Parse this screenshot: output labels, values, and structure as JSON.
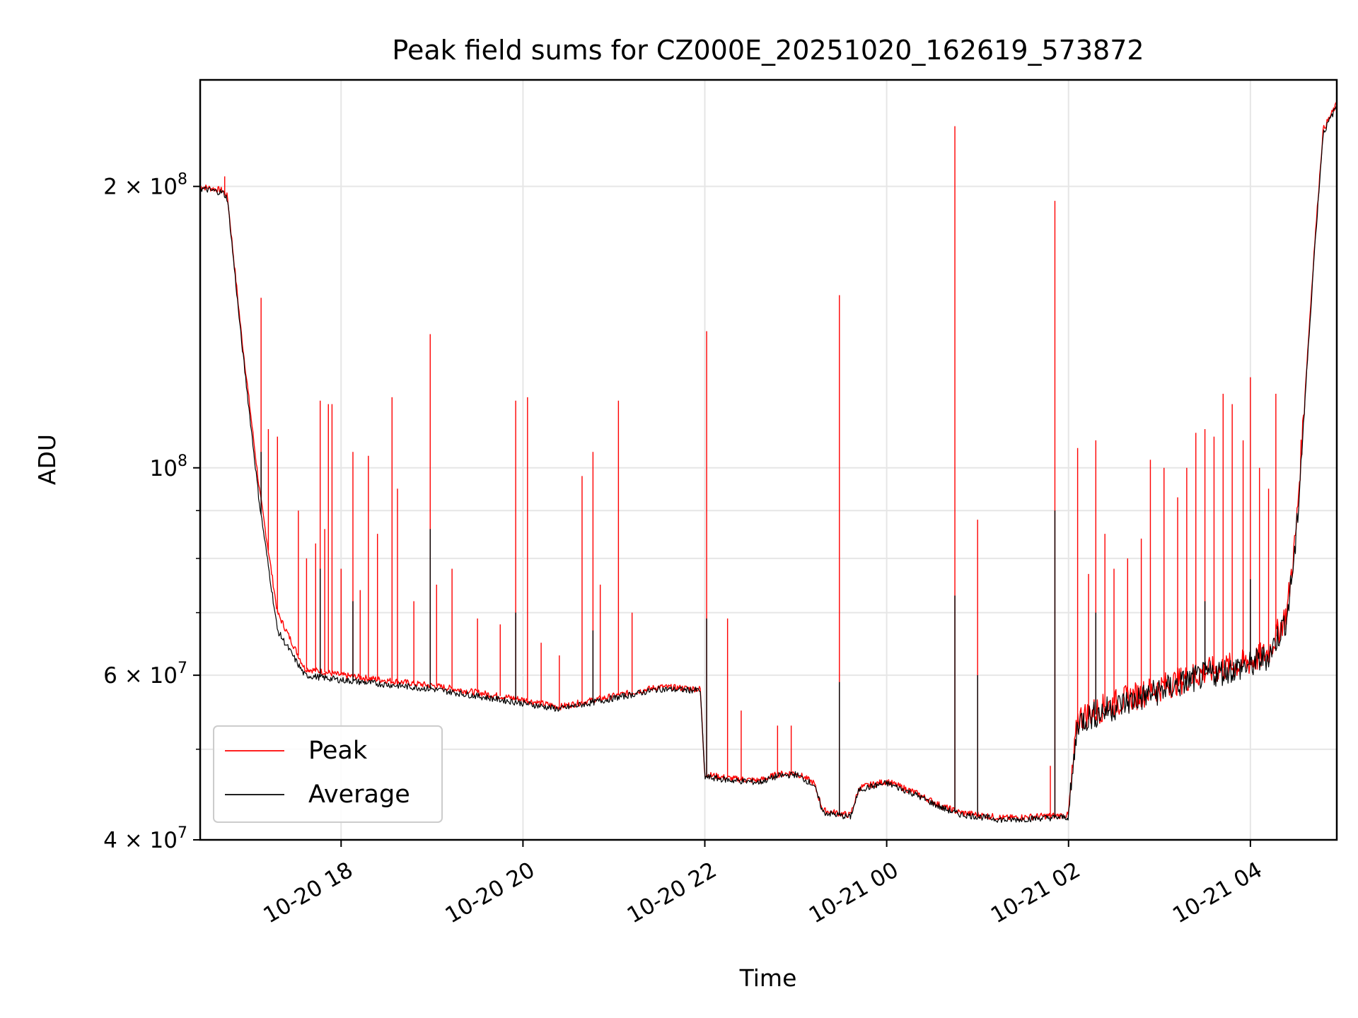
{
  "chart_data": {
    "type": "line",
    "title": "Peak field sums for CZ000E_20251020_162619_573872",
    "xlabel": "Time",
    "ylabel": "ADU",
    "yscale": "log",
    "ylim": [
      40000000,
      260000000
    ],
    "xlim_hours": [
      16.45,
      28.95
    ],
    "x_unit": "hours since 2025-10-20 00:00",
    "grid": true,
    "legend_position": "lower-left",
    "x_ticks": [
      {
        "label": "10-20 18",
        "value": 18
      },
      {
        "label": "10-20 20",
        "value": 20
      },
      {
        "label": "10-20 22",
        "value": 22
      },
      {
        "label": "10-21 00",
        "value": 24
      },
      {
        "label": "10-21 02",
        "value": 26
      },
      {
        "label": "10-21 04",
        "value": 28
      }
    ],
    "y_ticks": [
      {
        "mantissa": "4",
        "exp": "7",
        "value": 40000000
      },
      {
        "mantissa": "6",
        "exp": "7",
        "value": 60000000
      },
      {
        "mantissa": "",
        "exp": "8",
        "value": 100000000
      },
      {
        "mantissa": "2",
        "exp": "8",
        "value": 200000000
      }
    ],
    "y_minor_gridlines": [
      50000000,
      70000000,
      80000000,
      90000000
    ],
    "series": [
      {
        "name": "Peak",
        "color": "#ff0000",
        "baseline": [
          [
            16.45,
            200000000
          ],
          [
            16.7,
            198000000
          ],
          [
            16.75,
            195000000
          ],
          [
            16.9,
            140000000
          ],
          [
            17.1,
            95000000
          ],
          [
            17.3,
            70000000
          ],
          [
            17.6,
            61000000
          ],
          [
            18.0,
            60000000
          ],
          [
            19.0,
            58500000
          ],
          [
            20.0,
            56500000
          ],
          [
            20.4,
            55500000
          ],
          [
            21.0,
            57000000
          ],
          [
            21.5,
            58300000
          ],
          [
            21.95,
            58000000
          ],
          [
            22.0,
            47000000
          ],
          [
            22.3,
            46500000
          ],
          [
            22.6,
            46300000
          ],
          [
            22.8,
            47000000
          ],
          [
            23.0,
            47200000
          ],
          [
            23.2,
            46000000
          ],
          [
            23.3,
            43000000
          ],
          [
            23.6,
            42500000
          ],
          [
            23.7,
            45500000
          ],
          [
            24.0,
            46200000
          ],
          [
            24.3,
            45000000
          ],
          [
            24.6,
            43500000
          ],
          [
            24.8,
            42800000
          ],
          [
            25.3,
            42200000
          ],
          [
            25.7,
            42400000
          ],
          [
            26.0,
            42500000
          ],
          [
            26.1,
            54000000
          ],
          [
            26.5,
            56000000
          ],
          [
            27.0,
            58200000
          ],
          [
            27.5,
            60500000
          ],
          [
            28.0,
            62000000
          ],
          [
            28.2,
            63500000
          ],
          [
            28.4,
            70000000
          ],
          [
            28.5,
            85000000
          ],
          [
            28.6,
            120000000
          ],
          [
            28.7,
            170000000
          ],
          [
            28.8,
            230000000
          ],
          [
            28.95,
            245000000
          ]
        ],
        "spikes": [
          [
            16.72,
            205000000
          ],
          [
            17.12,
            152000000
          ],
          [
            17.2,
            110000000
          ],
          [
            17.3,
            108000000
          ],
          [
            17.53,
            90000000
          ],
          [
            17.62,
            80000000
          ],
          [
            17.72,
            83000000
          ],
          [
            17.77,
            118000000
          ],
          [
            17.82,
            86000000
          ],
          [
            17.86,
            117000000
          ],
          [
            17.9,
            117000000
          ],
          [
            18.0,
            78000000
          ],
          [
            18.13,
            104000000
          ],
          [
            18.21,
            74000000
          ],
          [
            18.3,
            103000000
          ],
          [
            18.4,
            85000000
          ],
          [
            18.56,
            119000000
          ],
          [
            18.62,
            95000000
          ],
          [
            18.8,
            72000000
          ],
          [
            18.98,
            139000000
          ],
          [
            19.05,
            75000000
          ],
          [
            19.22,
            78000000
          ],
          [
            19.5,
            69000000
          ],
          [
            19.75,
            68000000
          ],
          [
            19.92,
            118000000
          ],
          [
            20.05,
            119000000
          ],
          [
            20.2,
            65000000
          ],
          [
            20.4,
            63000000
          ],
          [
            20.65,
            98000000
          ],
          [
            20.77,
            104000000
          ],
          [
            20.85,
            75000000
          ],
          [
            21.05,
            118000000
          ],
          [
            21.2,
            70000000
          ],
          [
            22.02,
            140000000
          ],
          [
            22.25,
            69000000
          ],
          [
            22.4,
            55000000
          ],
          [
            22.8,
            53000000
          ],
          [
            22.95,
            53000000
          ],
          [
            23.48,
            153000000
          ],
          [
            24.75,
            232000000
          ],
          [
            25.0,
            88000000
          ],
          [
            25.8,
            48000000
          ],
          [
            25.85,
            193000000
          ],
          [
            26.1,
            105000000
          ],
          [
            26.22,
            77000000
          ],
          [
            26.3,
            107000000
          ],
          [
            26.4,
            85000000
          ],
          [
            26.5,
            78000000
          ],
          [
            26.65,
            80000000
          ],
          [
            26.8,
            84000000
          ],
          [
            26.9,
            102000000
          ],
          [
            27.05,
            100000000
          ],
          [
            27.2,
            93000000
          ],
          [
            27.3,
            100000000
          ],
          [
            27.4,
            109000000
          ],
          [
            27.5,
            110000000
          ],
          [
            27.6,
            108000000
          ],
          [
            27.7,
            120000000
          ],
          [
            27.8,
            117000000
          ],
          [
            27.92,
            107000000
          ],
          [
            28.0,
            125000000
          ],
          [
            28.1,
            100000000
          ],
          [
            28.2,
            95000000
          ],
          [
            28.28,
            120000000
          ]
        ]
      },
      {
        "name": "Average",
        "color": "#000000",
        "baseline": [
          [
            16.45,
            199000000
          ],
          [
            16.7,
            197000000
          ],
          [
            16.75,
            194000000
          ],
          [
            16.9,
            138000000
          ],
          [
            17.1,
            92000000
          ],
          [
            17.3,
            67000000
          ],
          [
            17.6,
            60000000
          ],
          [
            18.0,
            59300000
          ],
          [
            19.0,
            58000000
          ],
          [
            20.0,
            56000000
          ],
          [
            20.4,
            55200000
          ],
          [
            21.0,
            56700000
          ],
          [
            21.5,
            58000000
          ],
          [
            21.95,
            57800000
          ],
          [
            22.0,
            46700000
          ],
          [
            22.3,
            46300000
          ],
          [
            22.6,
            46100000
          ],
          [
            22.8,
            46800000
          ],
          [
            23.0,
            47000000
          ],
          [
            23.2,
            45800000
          ],
          [
            23.3,
            42800000
          ],
          [
            23.6,
            42300000
          ],
          [
            23.7,
            45300000
          ],
          [
            24.0,
            46000000
          ],
          [
            24.3,
            44800000
          ],
          [
            24.6,
            43300000
          ],
          [
            24.8,
            42600000
          ],
          [
            25.3,
            42000000
          ],
          [
            25.7,
            42200000
          ],
          [
            26.0,
            42300000
          ],
          [
            26.1,
            53500000
          ],
          [
            26.5,
            55500000
          ],
          [
            27.0,
            57700000
          ],
          [
            27.5,
            60000000
          ],
          [
            28.0,
            61500000
          ],
          [
            28.2,
            63000000
          ],
          [
            28.4,
            69000000
          ],
          [
            28.5,
            83000000
          ],
          [
            28.6,
            118000000
          ],
          [
            28.7,
            168000000
          ],
          [
            28.8,
            228000000
          ],
          [
            28.95,
            244000000
          ]
        ],
        "spikes": [
          [
            17.12,
            104000000
          ],
          [
            17.77,
            78000000
          ],
          [
            18.13,
            72000000
          ],
          [
            18.98,
            86000000
          ],
          [
            19.92,
            70000000
          ],
          [
            20.77,
            67000000
          ],
          [
            22.02,
            69000000
          ],
          [
            23.48,
            59000000
          ],
          [
            24.75,
            73000000
          ],
          [
            25.0,
            60000000
          ],
          [
            25.85,
            90000000
          ],
          [
            26.3,
            70000000
          ],
          [
            27.5,
            72000000
          ],
          [
            28.0,
            76000000
          ]
        ]
      }
    ]
  }
}
